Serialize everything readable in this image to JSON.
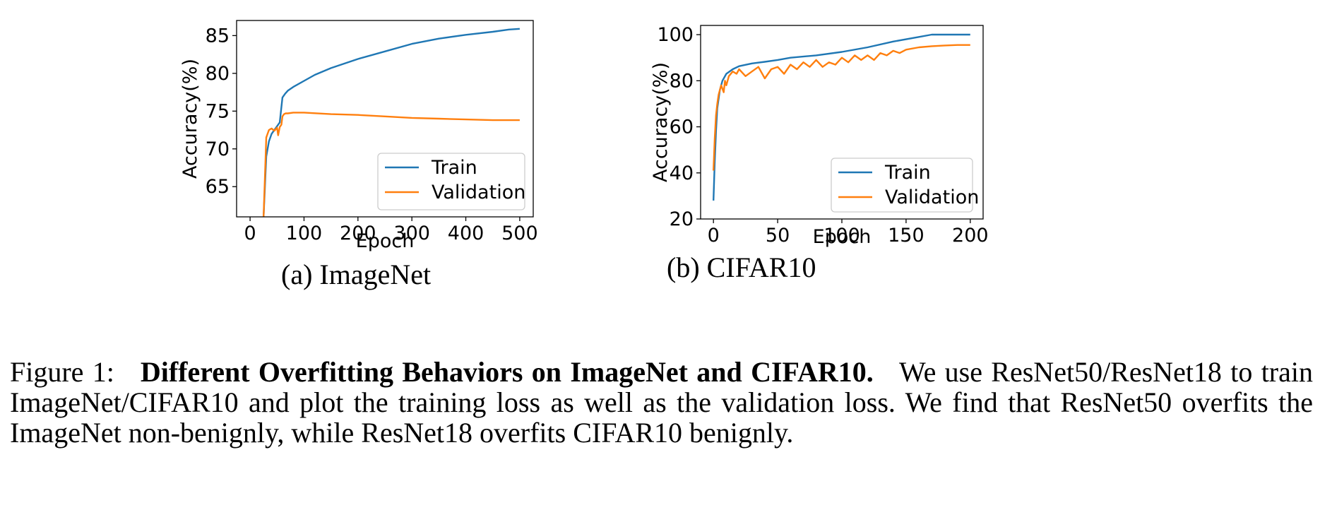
{
  "chart_data": [
    {
      "type": "line",
      "subcaption_label": "(a)",
      "subcaption_text": "ImageNet",
      "xlabel": "Epoch",
      "ylabel": "Accuracy(%)",
      "xlim": [
        -25,
        525
      ],
      "ylim": [
        61,
        87
      ],
      "xticks": [
        0,
        100,
        200,
        300,
        400,
        500
      ],
      "yticks": [
        65,
        70,
        75,
        80,
        85
      ],
      "legend_position": "lower right",
      "grid": false,
      "series": [
        {
          "name": "Train",
          "color": "#1f77b4",
          "x": [
            25,
            30,
            35,
            40,
            45,
            50,
            55,
            58,
            60,
            65,
            70,
            80,
            100,
            120,
            150,
            200,
            250,
            300,
            350,
            400,
            450,
            480,
            500
          ],
          "y": [
            61,
            69,
            71,
            72,
            72.5,
            73,
            73.5,
            75.5,
            76.8,
            77.3,
            77.7,
            78.2,
            79.0,
            79.8,
            80.7,
            81.9,
            82.9,
            83.9,
            84.6,
            85.1,
            85.5,
            85.8,
            85.9
          ]
        },
        {
          "name": "Validation",
          "color": "#ff7f0e",
          "x": [
            25,
            30,
            35,
            40,
            45,
            50,
            52,
            55,
            58,
            60,
            63,
            66,
            70,
            80,
            100,
            150,
            200,
            250,
            300,
            350,
            400,
            450,
            500
          ],
          "y": [
            61,
            71.5,
            72.5,
            72.7,
            72.4,
            72.8,
            71.8,
            72.9,
            73.2,
            74.3,
            74.6,
            74.7,
            74.7,
            74.8,
            74.8,
            74.6,
            74.5,
            74.3,
            74.1,
            74.0,
            73.9,
            73.8,
            73.8
          ]
        }
      ]
    },
    {
      "type": "line",
      "subcaption_label": "(b)",
      "subcaption_text": "CIFAR10",
      "xlabel": "Epoch",
      "ylabel": "Accuracy(%)",
      "xlim": [
        -10,
        210
      ],
      "ylim": [
        20,
        104
      ],
      "xticks": [
        0,
        50,
        100,
        150,
        200
      ],
      "yticks": [
        20,
        40,
        60,
        80,
        100
      ],
      "legend_position": "lower right",
      "grid": false,
      "series": [
        {
          "name": "Train",
          "color": "#1f77b4",
          "x": [
            0,
            1,
            2,
            3,
            5,
            7,
            10,
            15,
            20,
            30,
            40,
            50,
            60,
            80,
            100,
            120,
            140,
            160,
            170,
            180,
            190,
            200
          ],
          "y": [
            28,
            45,
            58,
            68,
            76,
            80,
            83,
            85,
            86.3,
            87.5,
            88.2,
            89,
            90,
            91,
            92.5,
            94.5,
            97,
            99,
            100,
            100,
            100,
            100
          ]
        },
        {
          "name": "Validation",
          "color": "#ff7f0e",
          "x": [
            0,
            1,
            2,
            3,
            4,
            6,
            8,
            9,
            10,
            12,
            15,
            18,
            20,
            25,
            30,
            35,
            40,
            45,
            50,
            55,
            60,
            65,
            70,
            75,
            80,
            85,
            90,
            95,
            100,
            105,
            110,
            115,
            120,
            125,
            130,
            135,
            140,
            145,
            150,
            160,
            170,
            180,
            190,
            200
          ],
          "y": [
            41,
            55,
            65,
            70,
            74,
            78,
            75,
            80,
            78,
            82,
            84,
            83,
            85,
            82,
            84,
            86,
            81,
            85,
            86,
            83,
            87,
            85,
            88,
            86,
            89,
            86,
            88,
            87,
            90,
            88,
            91,
            89,
            91,
            89,
            92,
            91,
            93,
            92,
            93.5,
            94.5,
            95,
            95.3,
            95.5,
            95.5
          ]
        }
      ]
    }
  ],
  "caption": {
    "label": "Figure 1:",
    "title": "Different Overfitting Behaviors on ImageNet and CIFAR10.",
    "body": "We use ResNet50/ResNet18 to train ImageNet/CIFAR10 and plot the training loss as well as the validation loss. We find that ResNet50 overfits the ImageNet non-benignly, while ResNet18 overfits CIFAR10 benignly."
  }
}
